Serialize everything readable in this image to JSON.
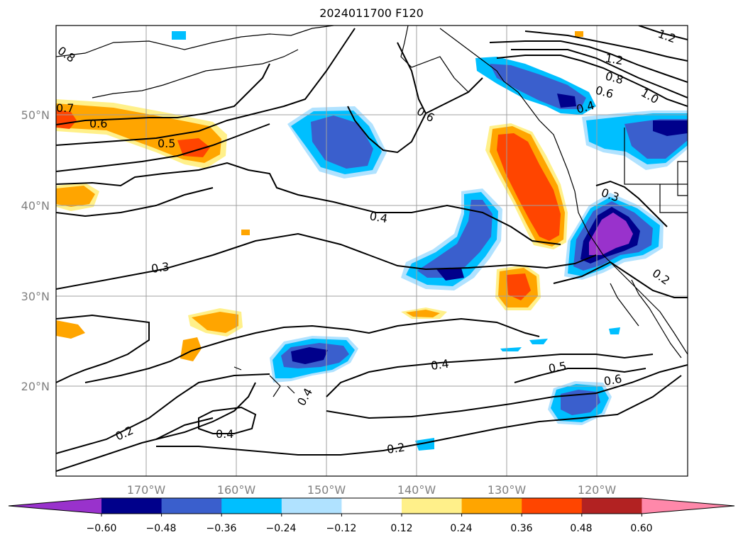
{
  "title": "2024011700 F120",
  "map": {
    "lat_ticks": [
      "50°N",
      "40°N",
      "30°N",
      "20°N"
    ],
    "lon_ticks": [
      "170°W",
      "160°W",
      "150°W",
      "140°W",
      "130°W",
      "120°W"
    ],
    "gridlines": true,
    "contour_labels": [
      "0.8",
      "1.2",
      "1.2",
      "0.8",
      "0.6",
      "1.0",
      "0.7",
      "0.6",
      "0.5",
      "0.6",
      "0.4",
      "0.4",
      "0.3",
      "0.3",
      "0.2",
      "0.4",
      "0.2",
      "0.4",
      "0.2",
      "0.5",
      "0.6",
      "0.4"
    ]
  },
  "colorbar": {
    "ticks": [
      "−0.60",
      "−0.48",
      "−0.36",
      "−0.24",
      "−0.12",
      "0.12",
      "0.24",
      "0.36",
      "0.48",
      "0.60"
    ],
    "colors": [
      "#9932cc",
      "#00008b",
      "#3a5fcd",
      "#00bfff",
      "#b0e2ff",
      "#ffffff",
      "#fff08a",
      "#ffa500",
      "#ff4500",
      "#b22222",
      "#ff88aa"
    ]
  }
}
